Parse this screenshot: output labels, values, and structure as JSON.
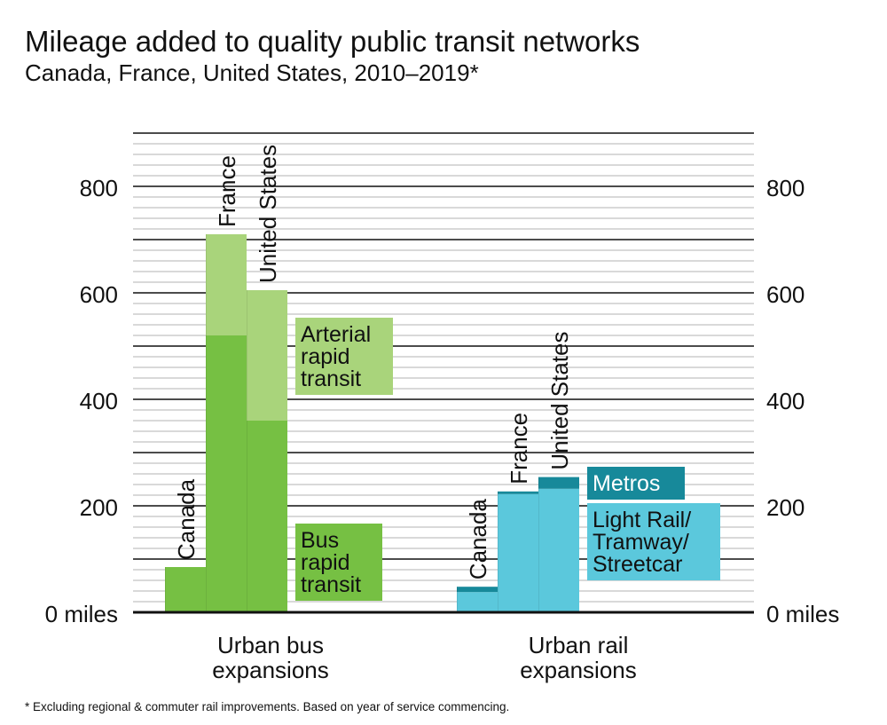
{
  "title": "Mileage added to quality public transit networks",
  "subtitle": "Canada, France, United States, 2010–2019*",
  "footnote": "* Excluding regional & commuter rail improvements. Based on year of service commencing.",
  "colors": {
    "bus_rapid_transit": "#76c043",
    "arterial_rapid_transit": "#a9d47b",
    "light_rail": "#5bc8dc",
    "metros": "#17899a"
  },
  "chart_data": {
    "type": "bar",
    "stacked": true,
    "ylim": [
      0,
      900
    ],
    "y_ticks": [
      {
        "value": 0,
        "label": "0 miles"
      },
      {
        "value": 200,
        "label": "200"
      },
      {
        "value": 400,
        "label": "400"
      },
      {
        "value": 600,
        "label": "600"
      },
      {
        "value": 800,
        "label": "800"
      }
    ],
    "grid": true,
    "groups": [
      {
        "label": [
          "Urban bus",
          "expansions"
        ],
        "categories": [
          "Canada",
          "France",
          "United States"
        ],
        "series": [
          {
            "name": [
              "Bus",
              "rapid",
              "transit"
            ],
            "color": "#76c043",
            "values": [
              85,
              520,
              360
            ]
          },
          {
            "name": [
              "Arterial",
              "rapid",
              "transit"
            ],
            "color": "#a9d47b",
            "values": [
              0,
              190,
              245
            ]
          }
        ]
      },
      {
        "label": [
          "Urban rail",
          "expansions"
        ],
        "categories": [
          "Canada",
          "France",
          "United States"
        ],
        "series": [
          {
            "name": [
              "Light Rail/",
              "Tramway/",
              "Streetcar"
            ],
            "color": "#5bc8dc",
            "values": [
              38,
              222,
              232
            ]
          },
          {
            "name": [
              "Metros"
            ],
            "color": "#17899a",
            "values": [
              10,
              5,
              22
            ]
          }
        ]
      }
    ]
  }
}
